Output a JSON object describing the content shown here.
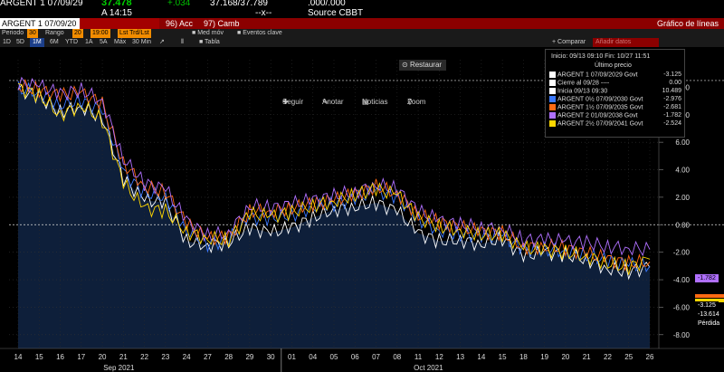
{
  "quote": {
    "security": "ARGENT 1 07/09/29",
    "last": "37.478",
    "change": "+.034",
    "bid_ask": "37.168/37.789",
    "size": ".000/.000",
    "time": "A 14:15",
    "dashes": "--x--",
    "source": "Source CBBT"
  },
  "toolbar": {
    "security_field": "ARGENT 1 07/09/20",
    "actions_label": "96) Acc",
    "edit_label": "97) Camb",
    "title": "Gráfico de líneas"
  },
  "settings": {
    "period_label": "Periodo",
    "period_value": "30",
    "range_label": "Rango",
    "range_value": "20",
    "time_value": "19:00",
    "last_label": "Lst Trd/Lst",
    "avg_label": "Med móv",
    "events_label": "Eventos clave"
  },
  "timeframes": [
    "1D",
    "5D",
    "1M",
    "6M",
    "YTD",
    "1A",
    "5A",
    "Máx",
    "30 Min"
  ],
  "selected_timeframe": "1M",
  "table_label": "Tabla",
  "compare_label": "+ Comparar",
  "compare_placeholder": "Añadir datos",
  "tools": {
    "follow": "Seguir",
    "annotate": "Anotar",
    "news": "Noticias",
    "zoom": "Zoom",
    "restore": "Restaurar"
  },
  "legend": {
    "header": "Inicio: 09/13 09:10 Fin: 10/27 11:51",
    "last_price": "Último precio",
    "rows": [
      {
        "label": "ARGENT 1 07/09/2029 Govt",
        "value": "-3.125",
        "color": "#ffffff"
      },
      {
        "label": "Cierre al 09/28 ----",
        "value": "0.00",
        "color": "#ffffff"
      },
      {
        "label": "Inicia 09/13 09:30",
        "value": "10.489",
        "color": "#ffffff"
      },
      {
        "label": "ARGENT 0½ 07/09/2030 Govt",
        "value": "-2.976",
        "color": "#3a78ff"
      },
      {
        "label": "ARGENT 1½ 07/09/2035 Govt",
        "value": "-2.681",
        "color": "#ff6a13"
      },
      {
        "label": "ARGENT 2 01/09/2038 Govt",
        "value": "-1.782",
        "color": "#b070ff"
      },
      {
        "label": "ARGENT 2½ 07/09/2041 Govt",
        "value": "-2.524",
        "color": "#ffd700"
      }
    ]
  },
  "price_labels": {
    "purple": "-1.782",
    "white": "-3.125",
    "gray": "-13.614",
    "loss": "Pérdida"
  },
  "chart_data": {
    "type": "line",
    "x_ticks": [
      "14",
      "15",
      "16",
      "17",
      "20",
      "21",
      "22",
      "23",
      "24",
      "27",
      "28",
      "29",
      "30",
      "01",
      "04",
      "05",
      "06",
      "07",
      "08",
      "11",
      "12",
      "13",
      "14",
      "15",
      "18",
      "19",
      "20",
      "21",
      "22",
      "25",
      "26"
    ],
    "month_labels": [
      "Sep 2021",
      "Oct 2021"
    ],
    "y_ticks": [
      "10.00",
      "8.00",
      "6.00",
      "4.00",
      "2.00",
      "0.00",
      "-2.00",
      "-4.00",
      "-6.00",
      "-8.00"
    ],
    "ylim": [
      -9,
      12
    ],
    "reference_lines": [
      10.489,
      0
    ],
    "series": [
      {
        "name": "ARGENT 1 07/09/2029 Govt",
        "color": "#ffffff",
        "values": [
          9.8,
          9.3,
          8.2,
          8.6,
          7.8,
          3.3,
          1.8,
          1.6,
          -1.2,
          -1.5,
          -1.3,
          -0.2,
          -0.6,
          -0.2,
          0.5,
          1.1,
          1.3,
          1.6,
          1.0,
          -0.6,
          -1.2,
          -1.1,
          -1.4,
          -1.0,
          -2.3,
          -2.0,
          -2.2,
          -2.5,
          -3.2,
          -3.4,
          -3.1
        ]
      },
      {
        "name": "ARGENT 0½ 07/09/2030 Govt",
        "color": "#3a78ff",
        "values": [
          9.9,
          9.6,
          8.7,
          9.0,
          8.3,
          3.8,
          2.3,
          2.0,
          -0.4,
          -1.4,
          -1.1,
          0.5,
          0.5,
          0.7,
          1.3,
          1.5,
          1.9,
          2.5,
          2.0,
          0.4,
          -0.4,
          -0.7,
          -0.8,
          -0.8,
          -1.8,
          -1.8,
          -1.9,
          -2.2,
          -2.6,
          -2.9,
          -3.0
        ]
      },
      {
        "name": "ARGENT 1½ 07/09/2035 Govt",
        "color": "#ff6a13",
        "values": [
          10.1,
          9.8,
          9.4,
          9.6,
          8.8,
          4.5,
          2.8,
          2.4,
          0.1,
          -1.0,
          -0.9,
          1.0,
          1.0,
          1.2,
          1.5,
          1.8,
          2.2,
          2.8,
          2.3,
          0.7,
          0.2,
          -0.2,
          -0.5,
          -0.6,
          -1.6,
          -1.6,
          -1.7,
          -2.1,
          -2.5,
          -2.8,
          -2.7
        ]
      },
      {
        "name": "ARGENT 2 01/09/2038 Govt",
        "color": "#b070ff",
        "values": [
          10.3,
          10.1,
          9.5,
          9.8,
          9.0,
          4.8,
          3.0,
          2.6,
          0.3,
          -0.8,
          -0.6,
          1.4,
          1.2,
          1.5,
          1.8,
          2.1,
          2.4,
          2.9,
          2.6,
          1.0,
          0.3,
          0.0,
          -0.2,
          -0.3,
          -1.1,
          -1.1,
          -1.2,
          -1.3,
          -1.6,
          -1.7,
          -1.8
        ]
      },
      {
        "name": "ARGENT 2½ 07/09/2041 Govt",
        "color": "#ffd700",
        "values": [
          10.0,
          9.4,
          8.0,
          8.7,
          7.6,
          3.0,
          1.2,
          1.0,
          -0.5,
          -1.0,
          -1.1,
          0.8,
          0.6,
          0.9,
          1.4,
          1.7,
          2.2,
          2.6,
          2.2,
          0.5,
          -0.1,
          -0.4,
          -0.7,
          -0.7,
          -1.7,
          -1.8,
          -2.0,
          -2.3,
          -2.8,
          -3.1,
          -2.5
        ]
      }
    ]
  }
}
